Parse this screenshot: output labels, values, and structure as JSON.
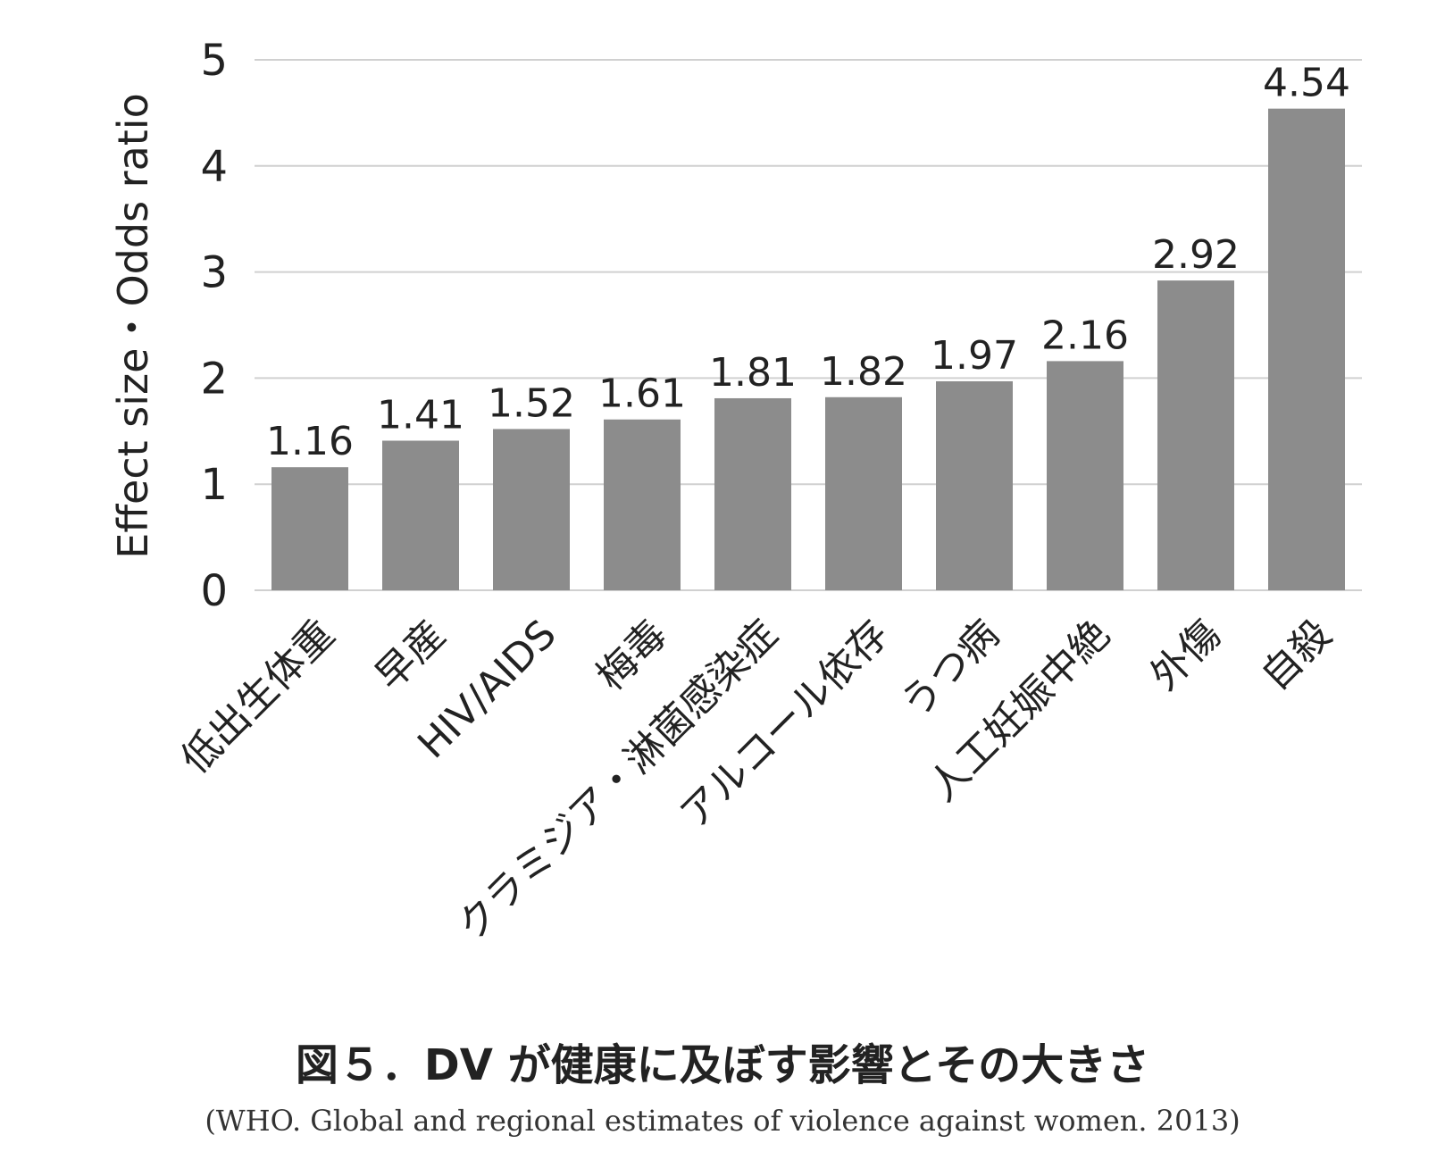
{
  "chart_data": {
    "type": "bar",
    "categories": [
      "低出生体重",
      "早産",
      "HIV/AIDS",
      "梅毒",
      "クラミジア・淋菌感染症",
      "アルコール依存",
      "うつ病",
      "人工妊娠中絶",
      "外傷",
      "自殺"
    ],
    "values": [
      1.16,
      1.41,
      1.52,
      1.61,
      1.81,
      1.82,
      1.97,
      2.16,
      2.92,
      4.54
    ],
    "data_labels": [
      "1.16",
      "1.41",
      "1.52",
      "1.61",
      "1.81",
      "1.82",
      "1.97",
      "2.16",
      "2.92",
      "4.54"
    ],
    "ylabel": "Effect size・Odds ratio",
    "ylim": [
      0,
      5
    ],
    "yticks": [
      0,
      1,
      2,
      3,
      4,
      5
    ],
    "grid": true,
    "bar_color": "#8c8c8c",
    "grid_color": "#d0d0d0"
  },
  "caption": "図５．DV が健康に及ぼす影響とその大きさ",
  "source": "(WHO. Global and regional estimates of violence against women. 2013)"
}
